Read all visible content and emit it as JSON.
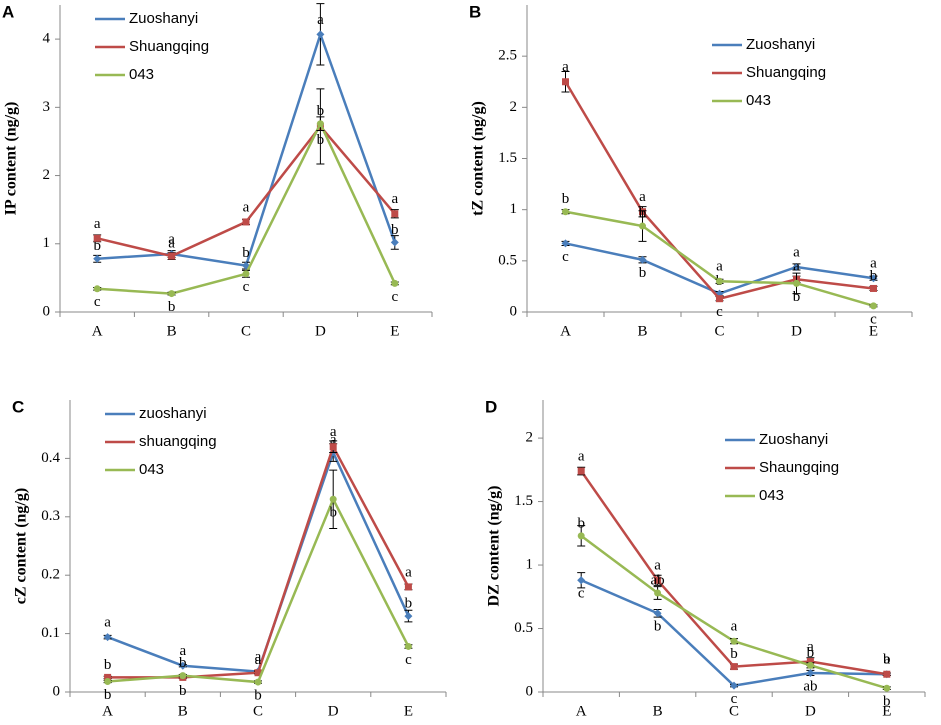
{
  "chart_data": [
    {
      "type": "line",
      "label": "A",
      "ylabel": "IP content (ng/g)",
      "categories": [
        "A",
        "B",
        "C",
        "D",
        "E"
      ],
      "ylim": [
        0,
        4.5
      ],
      "yticks": [
        0,
        1,
        2,
        3,
        4
      ],
      "legend": "upper left",
      "series": [
        {
          "name": "Zuoshanyi",
          "color": "#4a7ebb",
          "marker": "diamond",
          "values": [
            0.78,
            0.85,
            0.68,
            4.07,
            1.02
          ],
          "errors": [
            0.05,
            0.05,
            0.05,
            0.45,
            0.1
          ],
          "letters": [
            "b",
            "a",
            "b",
            "a",
            "b"
          ]
        },
        {
          "name": "Shuangqing",
          "color": "#be4b48",
          "marker": "square",
          "values": [
            1.08,
            0.82,
            1.32,
            2.72,
            1.44
          ],
          "errors": [
            0.05,
            0.05,
            0.04,
            0.55,
            0.06
          ],
          "letters": [
            "a",
            "a",
            "a",
            "b",
            "a"
          ]
        },
        {
          "name": "043",
          "color": "#98b954",
          "marker": "circle",
          "values": [
            0.34,
            0.27,
            0.56,
            2.76,
            0.42
          ],
          "errors": [
            0.02,
            0.02,
            0.05,
            0.1,
            0.02
          ],
          "letters": [
            "c",
            "b",
            "c",
            "b",
            "c"
          ]
        }
      ]
    },
    {
      "type": "line",
      "label": "B",
      "ylabel": "tZ content (ng/g)",
      "categories": [
        "A",
        "B",
        "C",
        "D",
        "E"
      ],
      "ylim": [
        0,
        3
      ],
      "yticks": [
        0,
        0.5,
        1,
        1.5,
        2,
        2.5
      ],
      "legend": "upper right",
      "series": [
        {
          "name": "Zuoshanyi",
          "color": "#4a7ebb",
          "marker": "diamond",
          "values": [
            0.67,
            0.51,
            0.18,
            0.44,
            0.33
          ],
          "errors": [
            0.02,
            0.03,
            0.02,
            0.03,
            0.02
          ],
          "letters": [
            "c",
            "b",
            "b",
            "a",
            "a"
          ]
        },
        {
          "name": "Shuangqing",
          "color": "#be4b48",
          "marker": "square",
          "values": [
            2.25,
            0.98,
            0.13,
            0.32,
            0.23
          ],
          "errors": [
            0.1,
            0.05,
            0.02,
            0.03,
            0.02
          ],
          "letters": [
            "a",
            "a",
            "c",
            "a",
            "b"
          ]
        },
        {
          "name": "043",
          "color": "#98b954",
          "marker": "circle",
          "values": [
            0.98,
            0.84,
            0.3,
            0.28,
            0.06
          ],
          "errors": [
            0.02,
            0.15,
            0.02,
            0.1,
            0.01
          ],
          "letters": [
            "b",
            "b",
            "a",
            "b",
            "c"
          ]
        }
      ]
    },
    {
      "type": "line",
      "label": "C",
      "ylabel": "cZ content (ng/g)",
      "categories": [
        "A",
        "B",
        "C",
        "D",
        "E"
      ],
      "ylim": [
        0,
        0.5
      ],
      "yticks": [
        0,
        0.1,
        0.2,
        0.3,
        0.4
      ],
      "legend": "upper left",
      "series": [
        {
          "name": "zuoshanyi",
          "color": "#4a7ebb",
          "marker": "diamond",
          "values": [
            0.094,
            0.045,
            0.035,
            0.41,
            0.13
          ],
          "errors": [
            0.003,
            0.002,
            0.002,
            0.015,
            0.01
          ],
          "letters": [
            "a",
            "a",
            "a",
            "a",
            "b"
          ]
        },
        {
          "name": "shuangqing",
          "color": "#be4b48",
          "marker": "square",
          "values": [
            0.025,
            0.025,
            0.033,
            0.42,
            0.18
          ],
          "errors": [
            0.002,
            0.002,
            0.002,
            0.01,
            0.005
          ],
          "letters": [
            "b",
            "b",
            "a",
            "a",
            "a"
          ]
        },
        {
          "name": "043",
          "color": "#98b954",
          "marker": "circle",
          "values": [
            0.018,
            0.028,
            0.017,
            0.33,
            0.078
          ],
          "errors": [
            0.002,
            0.002,
            0.002,
            0.05,
            0.003
          ],
          "letters": [
            "b",
            "b",
            "b",
            "b",
            "c"
          ]
        }
      ]
    },
    {
      "type": "line",
      "label": "D",
      "ylabel": "DZ content (ng/g)",
      "categories": [
        "A",
        "B",
        "C",
        "D",
        "E"
      ],
      "ylim": [
        0,
        2.3
      ],
      "yticks": [
        0,
        0.5,
        1,
        1.5,
        2
      ],
      "legend": "upper right",
      "series": [
        {
          "name": "Zuoshanyi",
          "color": "#4a7ebb",
          "marker": "diamond",
          "values": [
            0.88,
            0.62,
            0.05,
            0.15,
            0.14
          ],
          "errors": [
            0.06,
            0.03,
            0.01,
            0.02,
            0.01
          ],
          "letters": [
            "c",
            "b",
            "c",
            "ab",
            "b"
          ]
        },
        {
          "name": "Shaungqing",
          "color": "#be4b48",
          "marker": "square",
          "values": [
            1.74,
            0.88,
            0.2,
            0.24,
            0.14
          ],
          "errors": [
            0.03,
            0.04,
            0.02,
            0.03,
            0.01
          ],
          "letters": [
            "a",
            "a",
            "b",
            "a",
            "a"
          ]
        },
        {
          "name": "043",
          "color": "#98b954",
          "marker": "circle",
          "values": [
            1.23,
            0.78,
            0.4,
            0.21,
            0.03
          ],
          "errors": [
            0.08,
            0.05,
            0.02,
            0.02,
            0.01
          ],
          "letters": [
            "b",
            "ab",
            "a",
            "b",
            "b"
          ]
        }
      ]
    }
  ]
}
